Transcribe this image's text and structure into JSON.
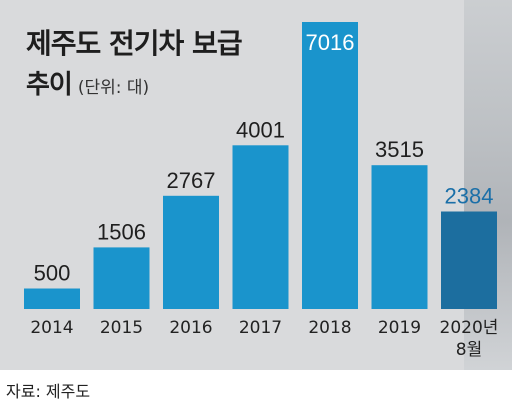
{
  "header": {
    "title_line1": "제주도 전기차 보급",
    "title_line2": "추이",
    "unit_note": "(단위: 대)"
  },
  "chart_data": {
    "type": "bar",
    "categories": [
      "2014",
      "2015",
      "2016",
      "2017",
      "2018",
      "2019",
      "2020년\n8월"
    ],
    "values": [
      500,
      1506,
      2767,
      4001,
      7016,
      3515,
      2384
    ],
    "data_labels": [
      "500",
      "1506",
      "2767",
      "4001",
      "7016",
      "3515",
      "2384"
    ],
    "title": "제주도 전기차 보급 추이",
    "unit": "(단위: 대)",
    "ylim": [
      0,
      7016
    ],
    "grid": false,
    "legend": "none",
    "colors": {
      "bar": "#1a94cc",
      "bar_highlight": "#1c6e9f",
      "label": "#1f1f1f",
      "label_highlight": "#1a6fa8",
      "label_inside": "#ffffff",
      "panel": "#d9dadc"
    }
  },
  "footer": {
    "source": "자료: 제주도"
  }
}
